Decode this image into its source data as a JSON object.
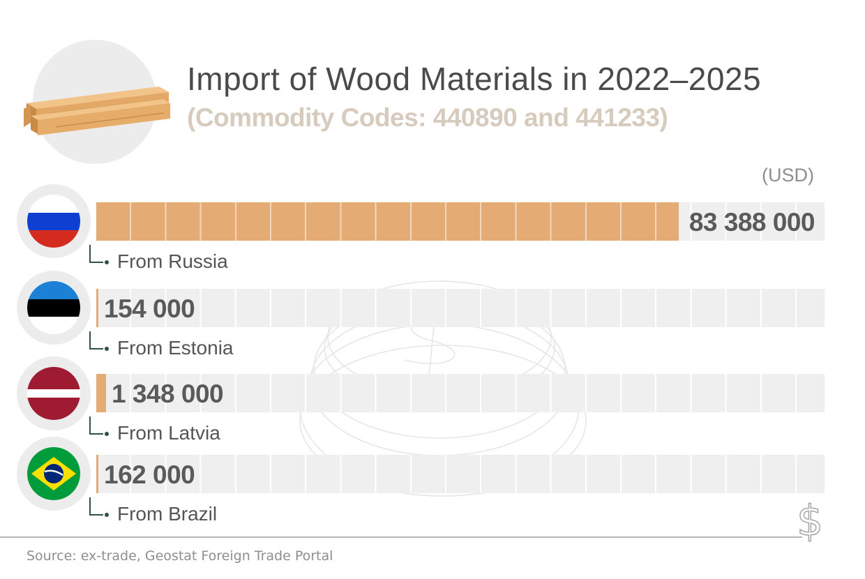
{
  "header": {
    "title": "Import of Wood Materials in 2022–2025",
    "subtitle": "(Commodity Codes: 440890 and 441233)",
    "logo_icon": "wood-planks-icon"
  },
  "unit_label": "(USD)",
  "source": "Source: ex-trade, Geostat Foreign Trade Portal",
  "colors": {
    "bar": "#e4ab74",
    "track": "#efefef",
    "title": "#4a4a4a",
    "subtitle": "#d6cbbd",
    "connector": "#2f5248"
  },
  "chart_data": {
    "type": "bar",
    "orientation": "horizontal",
    "title": "Import of Wood Materials in 2022–2025",
    "subtitle": "(Commodity Codes: 440890 and 441233)",
    "unit": "(USD)",
    "xlim": [
      0,
      104235000
    ],
    "grid": true,
    "items": [
      {
        "country": "Russia",
        "label": "From Russia",
        "value": 83388000,
        "value_label": "83 388 000",
        "flag": "russia-flag-icon"
      },
      {
        "country": "Estonia",
        "label": "From Estonia",
        "value": 154000,
        "value_label": "154 000",
        "flag": "estonia-flag-icon"
      },
      {
        "country": "Latvia",
        "label": "From Latvia",
        "value": 1348000,
        "value_label": "1 348 000",
        "flag": "latvia-flag-icon"
      },
      {
        "country": "Brazil",
        "label": "From Brazil",
        "value": 162000,
        "value_label": "162 000",
        "flag": "brazil-flag-icon"
      }
    ]
  }
}
